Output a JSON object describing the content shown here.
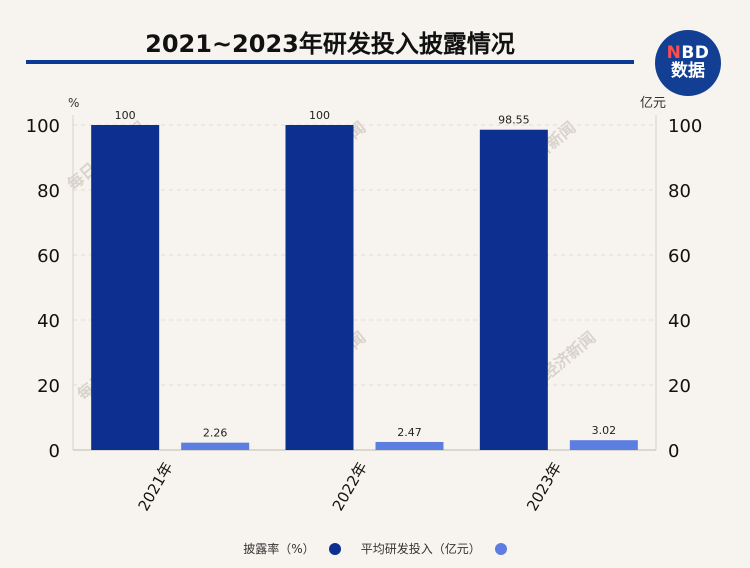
{
  "title": "2021~2023年研发投入披露情况",
  "logo": {
    "line1_n": "N",
    "line1_rest": "BD",
    "line2": "数据"
  },
  "watermark": "每日经济新闻",
  "chart_data": {
    "type": "bar",
    "categories": [
      "2021年",
      "2022年",
      "2023年"
    ],
    "series": [
      {
        "name": "披露率（%）",
        "values": [
          100,
          100,
          98.55
        ],
        "color": "#0d2f8f",
        "axis": "left"
      },
      {
        "name": "平均研发投入（亿元）",
        "values": [
          2.26,
          2.47,
          3.02
        ],
        "color": "#5b7ee0",
        "axis": "right"
      }
    ],
    "left_unit": "%",
    "right_unit": "亿元",
    "ylim": [
      0,
      100
    ],
    "yticks": [
      0,
      20,
      40,
      60,
      80,
      100
    ],
    "grid": true,
    "legend_position": "bottom"
  }
}
